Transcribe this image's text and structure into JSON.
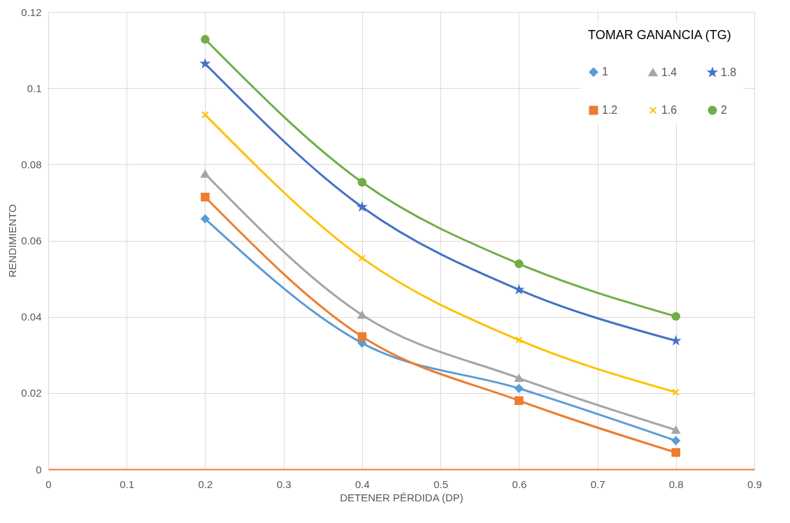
{
  "chart_data": {
    "type": "line",
    "xlabel": "DETENER PÉRDIDA (DP)",
    "ylabel": "RENDIMIENTO",
    "legend_title": "TOMAR GANANCIA (TG)",
    "legend": "top right",
    "grid": true,
    "line_style": "solid",
    "xlim": [
      0,
      0.9
    ],
    "xticks": [
      0,
      0.1,
      0.2,
      0.3,
      0.4,
      0.5,
      0.6,
      0.7,
      0.8,
      0.9
    ],
    "ylim": [
      0,
      0.12
    ],
    "yticks": [
      0,
      0.02,
      0.04,
      0.06,
      0.08,
      0.1,
      0.12
    ],
    "x": [
      0.2,
      0.4,
      0.6,
      0.8
    ],
    "series": [
      {
        "name": "1",
        "color": "#5b9bd5",
        "marker": "diamond",
        "values": [
          0.0657,
          0.0331,
          0.0212,
          0.0075
        ]
      },
      {
        "name": "1.2",
        "color": "#ed7d31",
        "marker": "square",
        "values": [
          0.0714,
          0.0348,
          0.018,
          0.0044
        ]
      },
      {
        "name": "1.4",
        "color": "#a5a5a5",
        "marker": "triangle",
        "values": [
          0.0775,
          0.0405,
          0.0239,
          0.0103
        ]
      },
      {
        "name": "1.6",
        "color": "#ffc000",
        "marker": "cross",
        "values": [
          0.093,
          0.0554,
          0.0339,
          0.0202
        ]
      },
      {
        "name": "1.8",
        "color": "#4472c4",
        "marker": "star",
        "values": [
          0.1064,
          0.0688,
          0.0471,
          0.0337
        ]
      },
      {
        "name": "2",
        "color": "#70ad47",
        "marker": "circle",
        "values": [
          0.1128,
          0.0753,
          0.0539,
          0.0401
        ]
      }
    ]
  }
}
